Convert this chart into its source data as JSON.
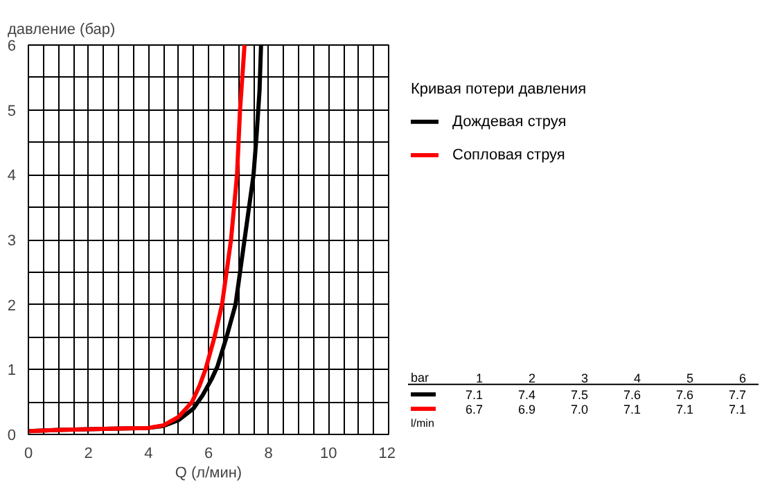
{
  "chart_data": {
    "type": "line",
    "ylabel": "давление (бар)",
    "xlabel": "Q (л/мин)",
    "legend_title": "Кривая потери давления",
    "xlim": [
      0,
      12
    ],
    "ylim": [
      0,
      6
    ],
    "xticks": [
      0,
      {
        "value": 0.5,
        "label": null
      },
      {
        "value": 1,
        "label": null
      },
      {
        "value": 1.5,
        "label": null
      },
      2,
      {
        "value": 2.5,
        "label": null
      },
      {
        "value": 3,
        "label": null
      },
      {
        "value": 3.5,
        "label": null
      },
      4,
      {
        "value": 4.5,
        "label": null
      },
      {
        "value": 5,
        "label": null
      },
      {
        "value": 5.5,
        "label": null
      },
      6,
      {
        "value": 6.5,
        "label": null
      },
      {
        "value": 7,
        "label": null
      },
      {
        "value": 7.5,
        "label": null
      },
      8,
      {
        "value": 8.5,
        "label": null
      },
      {
        "value": 9,
        "label": null
      },
      {
        "value": 9.5,
        "label": null
      },
      10,
      {
        "value": 10.5,
        "label": null
      },
      {
        "value": 11,
        "label": null
      },
      {
        "value": 11.5,
        "label": null
      },
      12
    ],
    "yticks": [
      0,
      {
        "value": 0.5,
        "label": null
      },
      1,
      {
        "value": 1.5,
        "label": null
      },
      2,
      {
        "value": 2.5,
        "label": null
      },
      3,
      {
        "value": 3.5,
        "label": null
      },
      4,
      {
        "value": 4.5,
        "label": null
      },
      5,
      {
        "value": 5.5,
        "label": null
      },
      6
    ],
    "grid": true,
    "legend": "right",
    "line_style": "solid",
    "marker": "none",
    "series": [
      {
        "name": "Дождевая струя",
        "color": "#000000",
        "x": [
          0,
          1,
          2,
          3,
          4,
          4.5,
          5,
          5.5,
          5.8,
          6.1,
          6.3,
          6.6,
          6.9,
          7.05,
          7.2,
          7.35,
          7.5,
          7.6,
          7.7,
          7.75
        ],
        "values": [
          0.05,
          0.07,
          0.08,
          0.09,
          0.1,
          0.13,
          0.22,
          0.4,
          0.6,
          0.85,
          1.05,
          1.5,
          2.0,
          2.5,
          3.0,
          3.5,
          4.0,
          4.6,
          5.3,
          6.0
        ]
      },
      {
        "name": "Сопловая струя",
        "color": "#ff0000",
        "x": [
          0,
          1,
          2,
          3,
          4,
          4.5,
          5,
          5.45,
          5.7,
          5.9,
          6.2,
          6.45,
          6.6,
          6.75,
          6.95,
          7.05,
          7.2
        ],
        "values": [
          0.05,
          0.07,
          0.08,
          0.09,
          0.1,
          0.14,
          0.27,
          0.5,
          0.75,
          1.0,
          1.5,
          2.0,
          2.5,
          3.0,
          4.0,
          5.0,
          6.0
        ]
      }
    ],
    "annotations": [
      "bar",
      "1",
      "2",
      "3",
      "4",
      "5",
      "6",
      "7.1",
      "7.4",
      "7.5",
      "7.6",
      "7.6",
      "7.7",
      "6.7",
      "6.9",
      "7.0",
      "7.1",
      "7.1",
      "7.1",
      "l/min"
    ]
  }
}
